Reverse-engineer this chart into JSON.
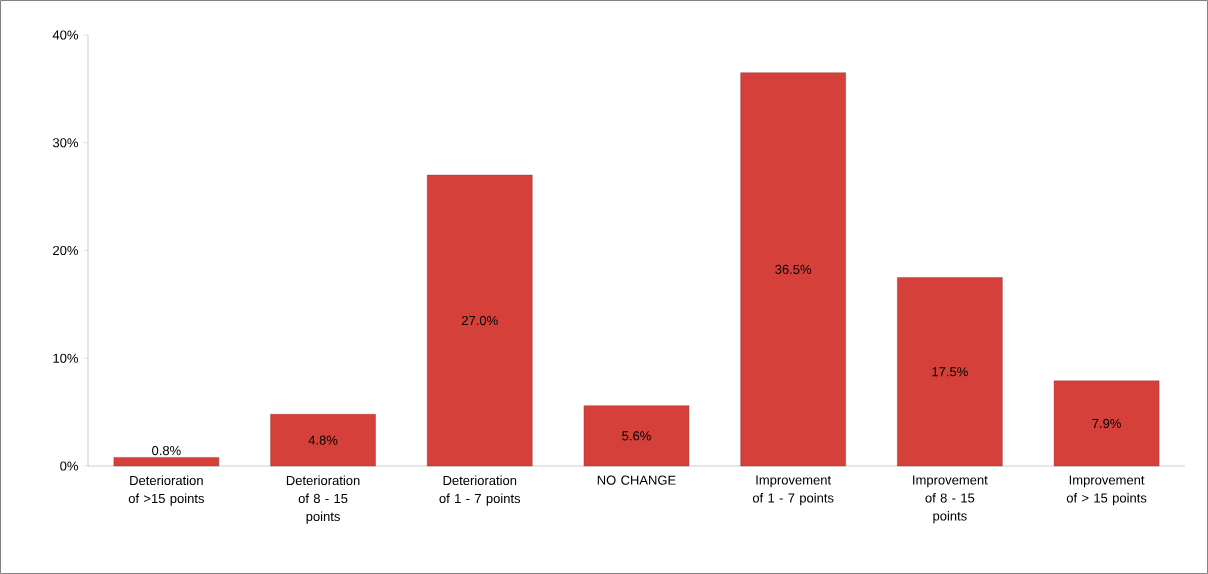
{
  "chart_data": {
    "type": "bar",
    "categories": [
      "Deterioration of >15 points",
      "Deterioration of 8 - 15 points",
      "Deterioration of 1 - 7 points",
      "NO CHANGE",
      "Improvement of 1 - 7 points",
      "Improvement of 8 - 15 points",
      "Improvement of > 15 points"
    ],
    "values": [
      0.8,
      4.8,
      27.0,
      5.6,
      36.5,
      17.5,
      7.9
    ],
    "value_labels": [
      "0.8%",
      "4.8%",
      "27.0%",
      "5.6%",
      "36.5%",
      "17.5%",
      "7.9%"
    ],
    "color": "#d6403a",
    "ylim": [
      0,
      40
    ],
    "yticks": [
      {
        "value": 0,
        "label": "0%"
      },
      {
        "value": 10,
        "label": "10%"
      },
      {
        "value": 20,
        "label": "20%"
      },
      {
        "value": 30,
        "label": "30%"
      },
      {
        "value": 40,
        "label": "40%"
      }
    ],
    "grid": false
  }
}
